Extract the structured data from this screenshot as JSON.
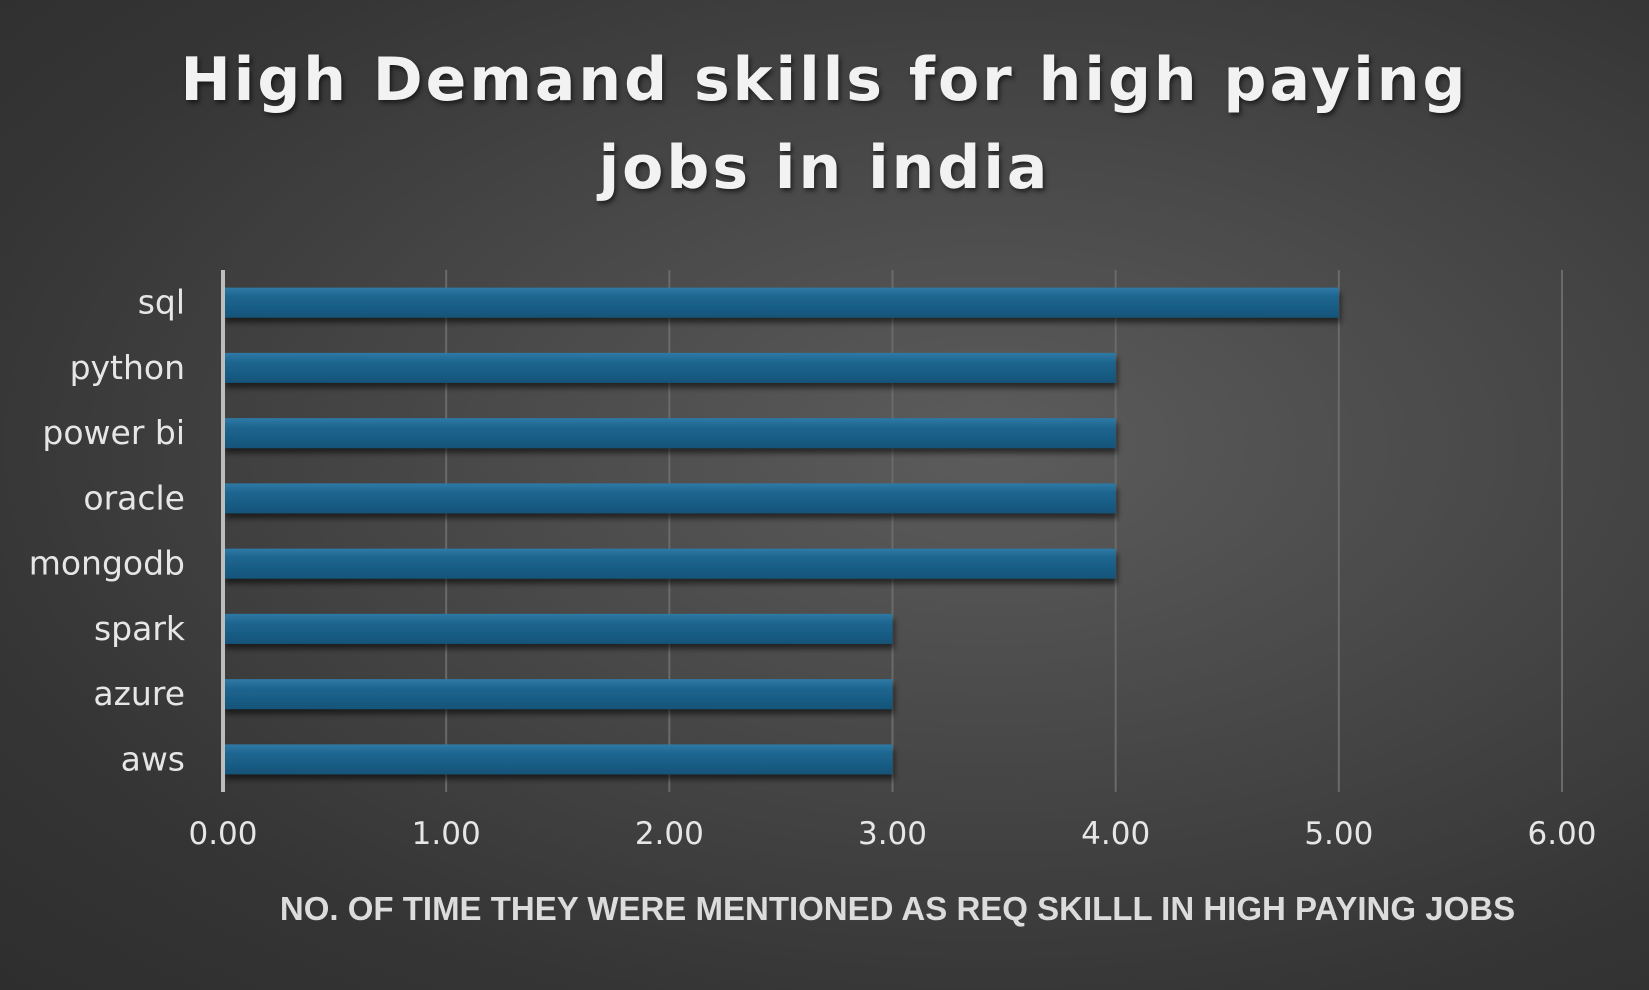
{
  "chart_data": {
    "type": "bar",
    "orientation": "horizontal",
    "title": "High Demand skills for high paying jobs in india",
    "title_lines": [
      "High Demand skills for high paying",
      "jobs in india"
    ],
    "categories": [
      "sql",
      "python",
      "power bi",
      "oracle",
      "mongodb",
      "spark",
      "azure",
      "aws"
    ],
    "values": [
      5,
      4,
      4,
      4,
      4,
      3,
      3,
      3
    ],
    "xlabel": "NO. OF TIME THEY WERE MENTIONED  AS REQ SKILLL IN HIGH PAYING JOBS",
    "ylabel": "",
    "xlim": [
      0,
      6
    ],
    "xticks": [
      "0.00",
      "1.00",
      "2.00",
      "3.00",
      "4.00",
      "5.00",
      "6.00"
    ],
    "grid": "vertical",
    "legend": "none",
    "colors": {
      "bar": "#1b5e86",
      "bar_highlight": "#2f7aa6",
      "background": "#4a4a4a",
      "text": "#e6e6e6"
    }
  }
}
